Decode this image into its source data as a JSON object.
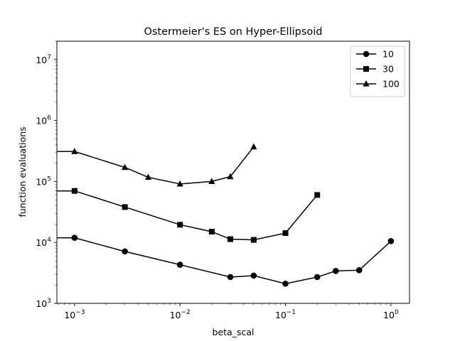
{
  "chart_data": {
    "type": "line",
    "title": "Ostermeier's ES on Hyper-Ellipsoid",
    "xlabel": "beta_scal",
    "ylabel": "function evaluations",
    "xscale": "log",
    "yscale": "log",
    "xlim": [
      0.00068,
      1.5
    ],
    "ylim": [
      1000,
      20000000
    ],
    "xticks": [
      {
        "value": 0.001,
        "base": "10",
        "exp": "−3"
      },
      {
        "value": 0.01,
        "base": "10",
        "exp": "−2"
      },
      {
        "value": 0.1,
        "base": "10",
        "exp": "−1"
      },
      {
        "value": 1,
        "base": "10",
        "exp": "0"
      }
    ],
    "yticks": [
      {
        "value": 1000,
        "base": "10",
        "exp": "3"
      },
      {
        "value": 10000,
        "base": "10",
        "exp": "4"
      },
      {
        "value": 100000,
        "base": "10",
        "exp": "5"
      },
      {
        "value": 1000000,
        "base": "10",
        "exp": "6"
      },
      {
        "value": 10000000,
        "base": "10",
        "exp": "7"
      }
    ],
    "grid": false,
    "legend_position": "top-right",
    "line_color": "#000000",
    "series": [
      {
        "name": "10",
        "marker": "circle",
        "points": [
          [
            0.001,
            11900
          ],
          [
            0.003,
            7100
          ],
          [
            0.01,
            4300
          ],
          [
            0.03,
            2700
          ],
          [
            0.05,
            2850
          ],
          [
            0.1,
            2100
          ],
          [
            0.2,
            2700
          ],
          [
            0.3,
            3400
          ],
          [
            0.5,
            3500
          ],
          [
            1.0,
            10500
          ]
        ]
      },
      {
        "name": "30",
        "marker": "square",
        "points": [
          [
            0.001,
            70000
          ],
          [
            0.003,
            38000
          ],
          [
            0.01,
            19500
          ],
          [
            0.02,
            15000
          ],
          [
            0.03,
            11300
          ],
          [
            0.05,
            11000
          ],
          [
            0.1,
            14200
          ],
          [
            0.2,
            60000
          ]
        ]
      },
      {
        "name": "100",
        "marker": "triangle",
        "points": [
          [
            0.001,
            310000
          ],
          [
            0.003,
            170000
          ],
          [
            0.005,
            117000
          ],
          [
            0.01,
            91000
          ],
          [
            0.02,
            100000
          ],
          [
            0.03,
            120000
          ],
          [
            0.05,
            370000
          ]
        ]
      }
    ]
  }
}
